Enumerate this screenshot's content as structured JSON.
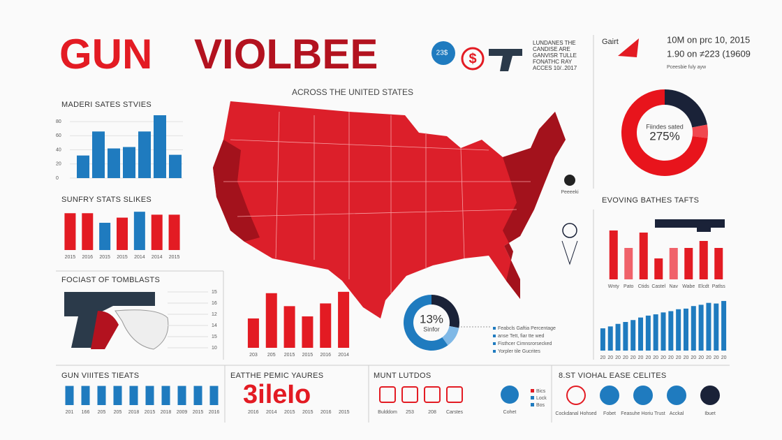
{
  "header": {
    "title_red": "GUN",
    "title_dark": "VIOLBEE",
    "subtitle": "ACROSS THE UNITED STATES",
    "badge": "23$",
    "note": [
      "LUNDANES THE",
      "CANDISE ARE",
      "GANVISR TULLE",
      "FONATHC RAY",
      "ACCES 10/..2017"
    ]
  },
  "stat": {
    "label": "Gairt",
    "lines": [
      "10M on prc 10, 2015",
      "1.90 on ≠223 (19609"
    ],
    "note": "Pceesbie fuly ayw"
  },
  "map_label": "Peeeeki",
  "charts": [
    {
      "type": "bar",
      "title": "MADERI SATES STVIES",
      "values": [
        32,
        66,
        42,
        44,
        66,
        89,
        33
      ],
      "color": "#1f7bbf",
      "ylim": [
        0,
        90
      ],
      "yticks": [
        0,
        20,
        40,
        60,
        80
      ]
    },
    {
      "type": "bar",
      "title": "SUNFRY STATS SLIKES",
      "categories": [
        "2015",
        "2016",
        "2015",
        "2015",
        "2014",
        "2014",
        "2015"
      ],
      "values": [
        50,
        50,
        37,
        44,
        52,
        48,
        48
      ],
      "colors": [
        "#e31b23",
        "#e31b23",
        "#1f7bbf",
        "#e31b23",
        "#1f7bbf",
        "#e31b23",
        "#e31b23"
      ],
      "ylim": [
        0,
        55
      ]
    },
    {
      "type": "bar",
      "categories": [
        "203",
        "205",
        "2015",
        "2015",
        "2016",
        "2014"
      ],
      "values": [
        43,
        80,
        61,
        46,
        65,
        82
      ],
      "color": "#e31b23",
      "ylim": [
        0,
        90
      ]
    },
    {
      "type": "donut",
      "center": [
        "13%",
        "Sinfor"
      ],
      "values": [
        28,
        12,
        60
      ],
      "colors": [
        "#1a2238",
        "#7fb8e6",
        "#1f7bbf"
      ],
      "legend": [
        "Feabcls Gaftia Percentage",
        "anse Tett, fiar tte wed",
        "Fisthcer Cimnsrorsecked",
        "Yorpler tile Gucrites"
      ]
    },
    {
      "type": "donut",
      "center": [
        "Fiindes sated",
        "275%"
      ],
      "values": [
        22,
        5,
        73
      ],
      "colors": [
        "#1a2238",
        "#f0474f",
        "#e8141c"
      ]
    },
    {
      "type": "bar",
      "title": "EVOVING BATHES TAFTS",
      "categories": [
        "Wnty",
        "Pato",
        "Ctids",
        "Castel",
        "Nav",
        "Wabe",
        "Elcdt",
        "Patlss"
      ],
      "values": [
        70,
        45,
        67,
        30,
        45,
        45,
        55,
        45
      ],
      "colors": [
        "#e31b23",
        "#f0626a",
        "#e31b23",
        "#e31b23",
        "#f0626a",
        "#e31b23",
        "#e31b23",
        "#e31b23"
      ],
      "ylim": [
        0,
        75
      ]
    },
    {
      "type": "bar",
      "categories": [
        "20",
        "20",
        "20",
        "20",
        "20",
        "20",
        "20",
        "20",
        "20",
        "20",
        "20",
        "20",
        "20",
        "20",
        "20",
        "20",
        "20"
      ],
      "values": [
        35,
        38,
        42,
        45,
        48,
        52,
        55,
        57,
        60,
        62,
        65,
        66,
        70,
        72,
        75,
        74,
        78
      ],
      "color": "#1f7bbf",
      "ylim": [
        0,
        90
      ]
    },
    {
      "type": "bar",
      "title": "GUN VIIITES TIEATS",
      "categories": [
        "201",
        "166",
        "205",
        "205",
        "2018",
        "2015",
        "2018",
        "2009",
        "2015",
        "2016"
      ],
      "values": [
        30,
        30,
        30,
        30,
        30,
        30,
        30,
        30,
        30,
        30
      ],
      "color": "#1f7bbf",
      "ylim": [
        0,
        35
      ]
    }
  ],
  "tombs": {
    "title": "FOCIAST OF TOMBLASTS",
    "ticks": [
      "15",
      "16",
      "12",
      "14",
      "15",
      "10"
    ]
  },
  "years": {
    "title": "EATTHE PEMIC YAURES",
    "big": "3ileIo",
    "labels": [
      "2016",
      "2014",
      "2015",
      "2015",
      "2016",
      "2015"
    ]
  },
  "munt": {
    "title": "MUNT LUTDOS",
    "labels": [
      "Bulddom",
      "253",
      "208",
      "Carstes",
      "Cohet"
    ],
    "legend": [
      "Bics",
      "Lock",
      "Bos"
    ]
  },
  "best": {
    "title": "8.ST VIOHAL EASE CELITES",
    "labels": [
      "Cockdanal Hohsed",
      "Fobet",
      "Feasuhe Horiu Trust",
      "Acckal",
      "Ibuet"
    ]
  }
}
